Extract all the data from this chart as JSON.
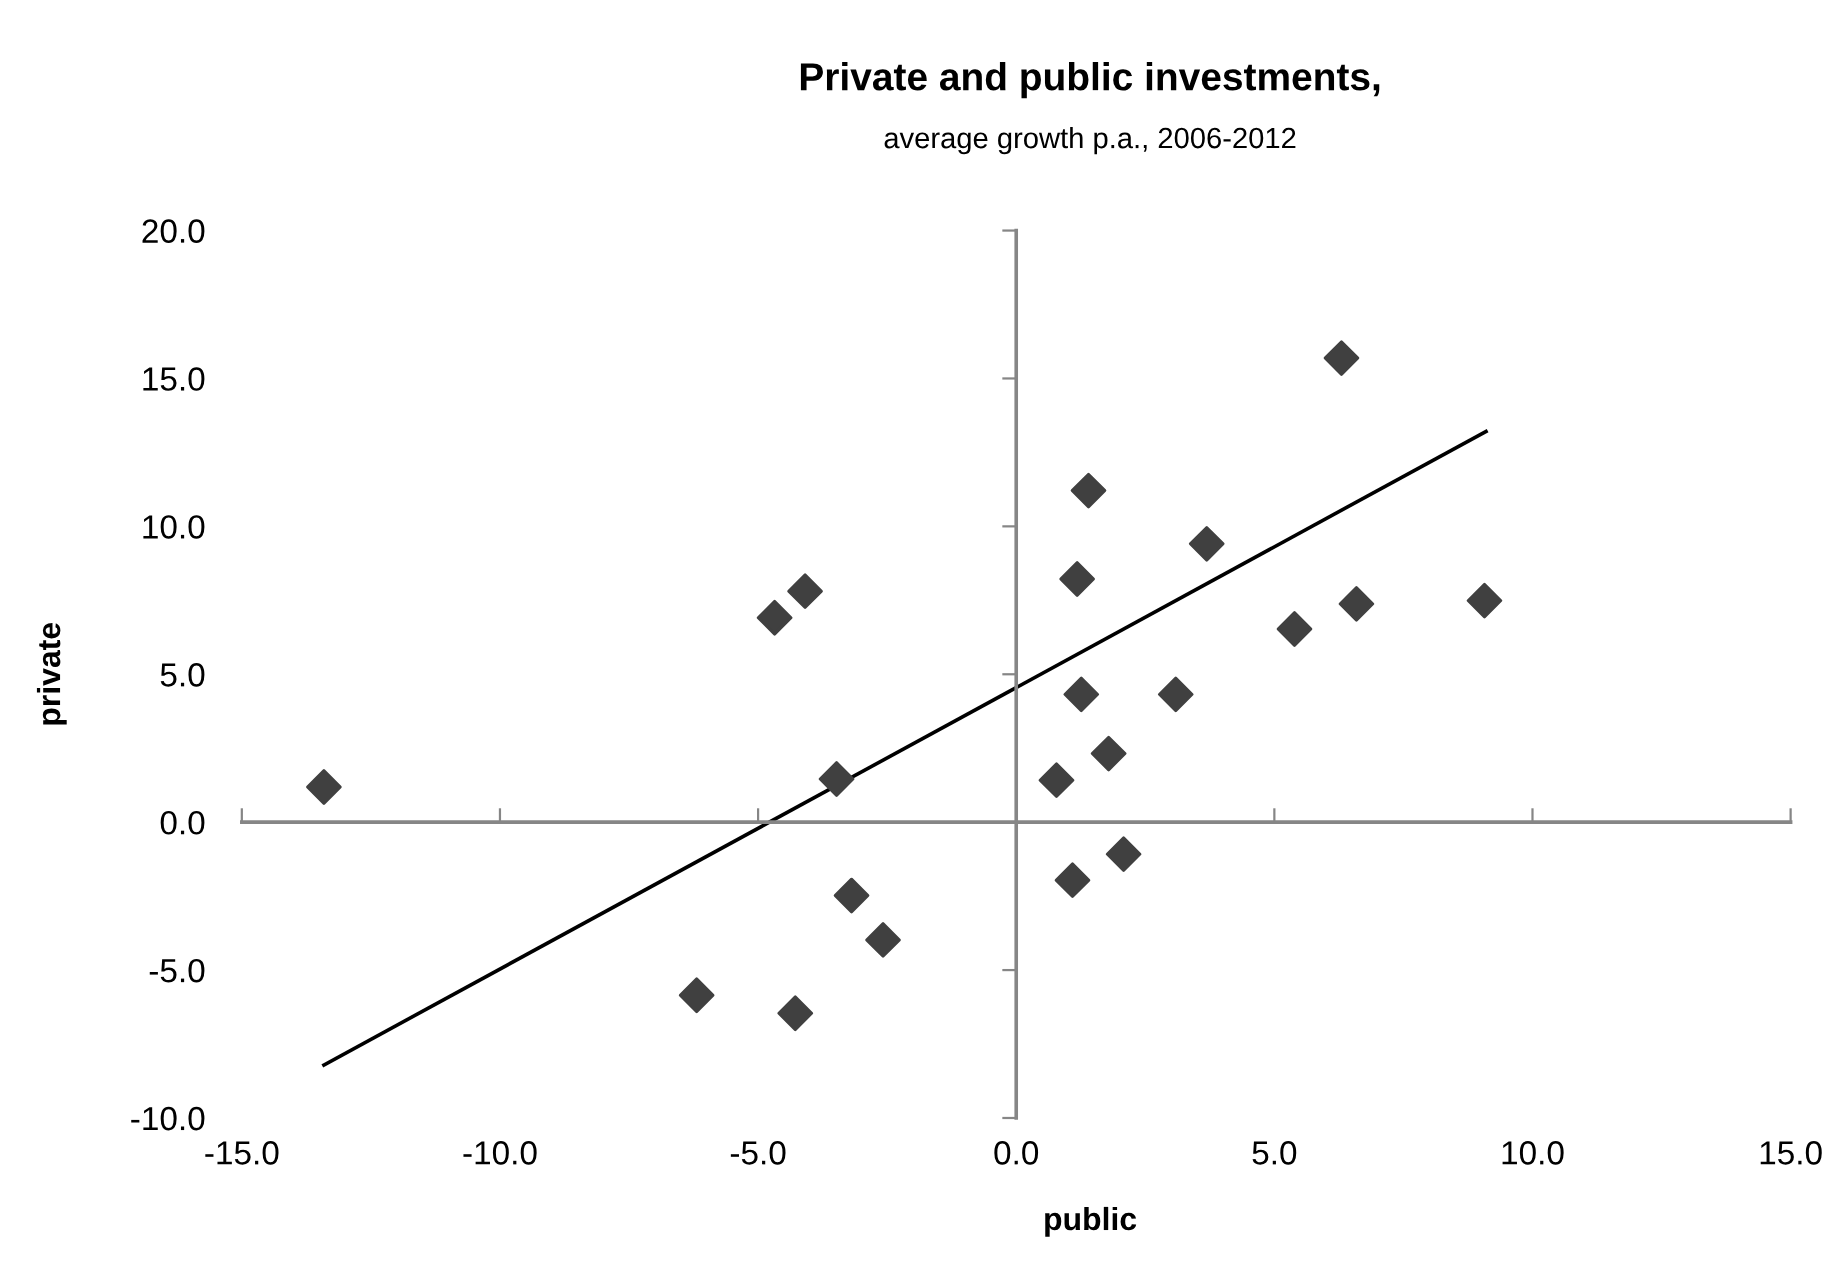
{
  "chart_data": {
    "type": "scatter",
    "title": "Private and public investments,",
    "subtitle": "average growth p.a., 2006-2012",
    "xlabel": "public",
    "ylabel": "private",
    "xlim": [
      -15,
      15
    ],
    "xticks": [
      {
        "value": -15,
        "label": "-15.0"
      },
      {
        "value": -10,
        "label": "-10.0"
      },
      {
        "value": -5,
        "label": "-5.0"
      },
      {
        "value": 0,
        "label": "0.0"
      },
      {
        "value": 5,
        "label": "5.0"
      },
      {
        "value": 10,
        "label": "10.0"
      },
      {
        "value": 15,
        "label": "15.0"
      }
    ],
    "ylim": [
      -10,
      20
    ],
    "yticks": [
      {
        "value": -10,
        "label": "-10.0"
      },
      {
        "value": -5,
        "label": "-5.0"
      },
      {
        "value": 0,
        "label": "0.0"
      },
      {
        "value": 5,
        "label": "5.0"
      },
      {
        "value": 10,
        "label": "10.0"
      },
      {
        "value": 15,
        "label": "15.0"
      },
      {
        "value": 20,
        "label": "20.0"
      }
    ],
    "series": [
      {
        "marker": "diamond",
        "color": "#404040",
        "x": [
          -13.41,
          -4.68,
          -4.09,
          -3.48,
          -3.19,
          -2.58,
          -6.19,
          -4.28,
          1.4,
          1.18,
          3.69,
          6.3,
          6.59,
          5.39,
          9.07,
          1.26,
          3.09,
          1.79,
          0.78,
          1.09,
          2.08
        ],
        "values": [
          1.19,
          6.91,
          7.81,
          1.46,
          -2.48,
          -3.98,
          -5.85,
          -6.46,
          11.21,
          8.22,
          9.41,
          15.69,
          7.38,
          6.53,
          7.49,
          4.32,
          4.32,
          2.32,
          1.42,
          -1.96,
          -1.08
        ]
      },
      {
        "type": "line",
        "marker": "none",
        "color": "#000000",
        "x": [
          -13.41,
          9.1
        ],
        "values": [
          -8.21,
          13.21
        ]
      }
    ]
  }
}
